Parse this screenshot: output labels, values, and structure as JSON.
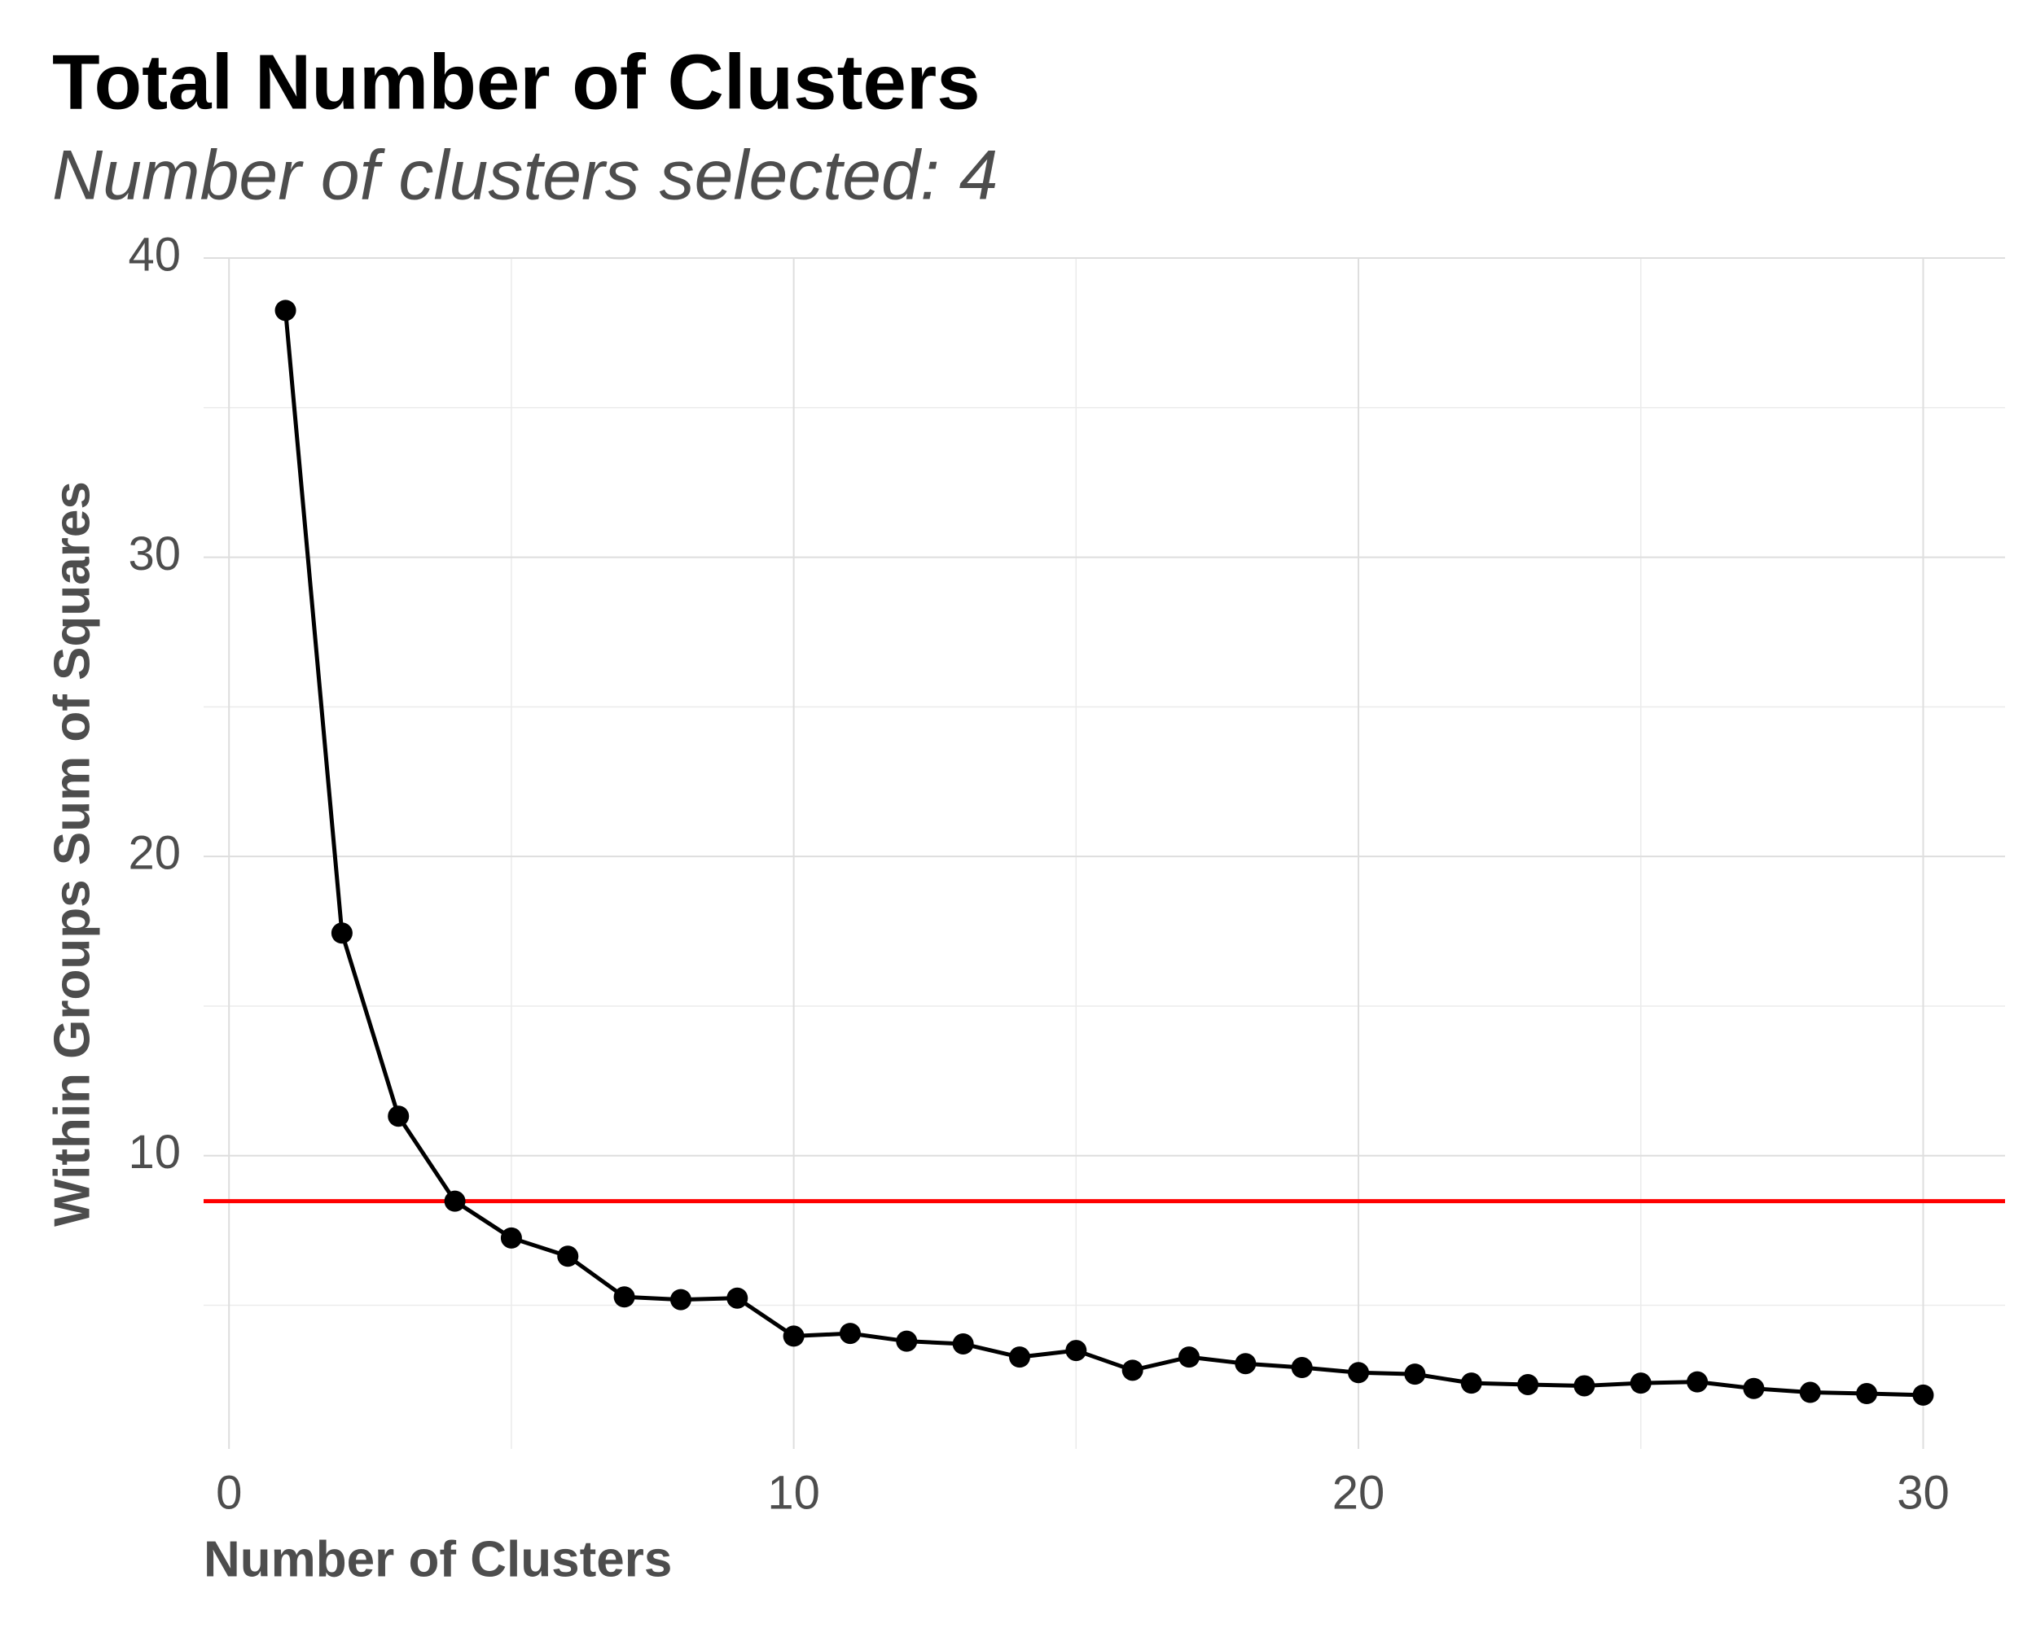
{
  "chart_data": {
    "type": "line",
    "title": "Total Number of Clusters",
    "subtitle": "Number of clusters selected: 4",
    "x_label": "Number of Clusters",
    "y_label": "Within Groups Sum of Squares",
    "x": [
      1,
      2,
      3,
      4,
      5,
      6,
      7,
      8,
      9,
      10,
      11,
      12,
      13,
      14,
      15,
      16,
      17,
      18,
      19,
      20,
      21,
      22,
      23,
      24,
      25,
      26,
      27,
      28,
      29,
      30
    ],
    "series": [
      {
        "color": "#000000",
        "values": [
          38.25,
          17.44,
          11.32,
          8.48,
          7.25,
          6.64,
          5.28,
          5.19,
          5.24,
          3.97,
          4.06,
          3.8,
          3.71,
          3.27,
          3.49,
          2.83,
          3.27,
          3.05,
          2.92,
          2.75,
          2.7,
          2.4,
          2.35,
          2.31,
          2.4,
          2.44,
          2.22,
          2.09,
          2.05,
          2.0
        ]
      }
    ],
    "reference_line": {
      "value": 8.48,
      "color": "#ff0000"
    },
    "xlim": [
      -0.45,
      31.45
    ],
    "ylim": [
      0.2,
      40
    ],
    "xticks": [
      0,
      10,
      20,
      30
    ],
    "yticks": [
      10,
      20,
      30,
      40
    ],
    "minor_xticks": [
      5,
      15,
      25
    ],
    "minor_yticks": [
      5,
      15,
      25,
      35
    ],
    "grid": true
  }
}
